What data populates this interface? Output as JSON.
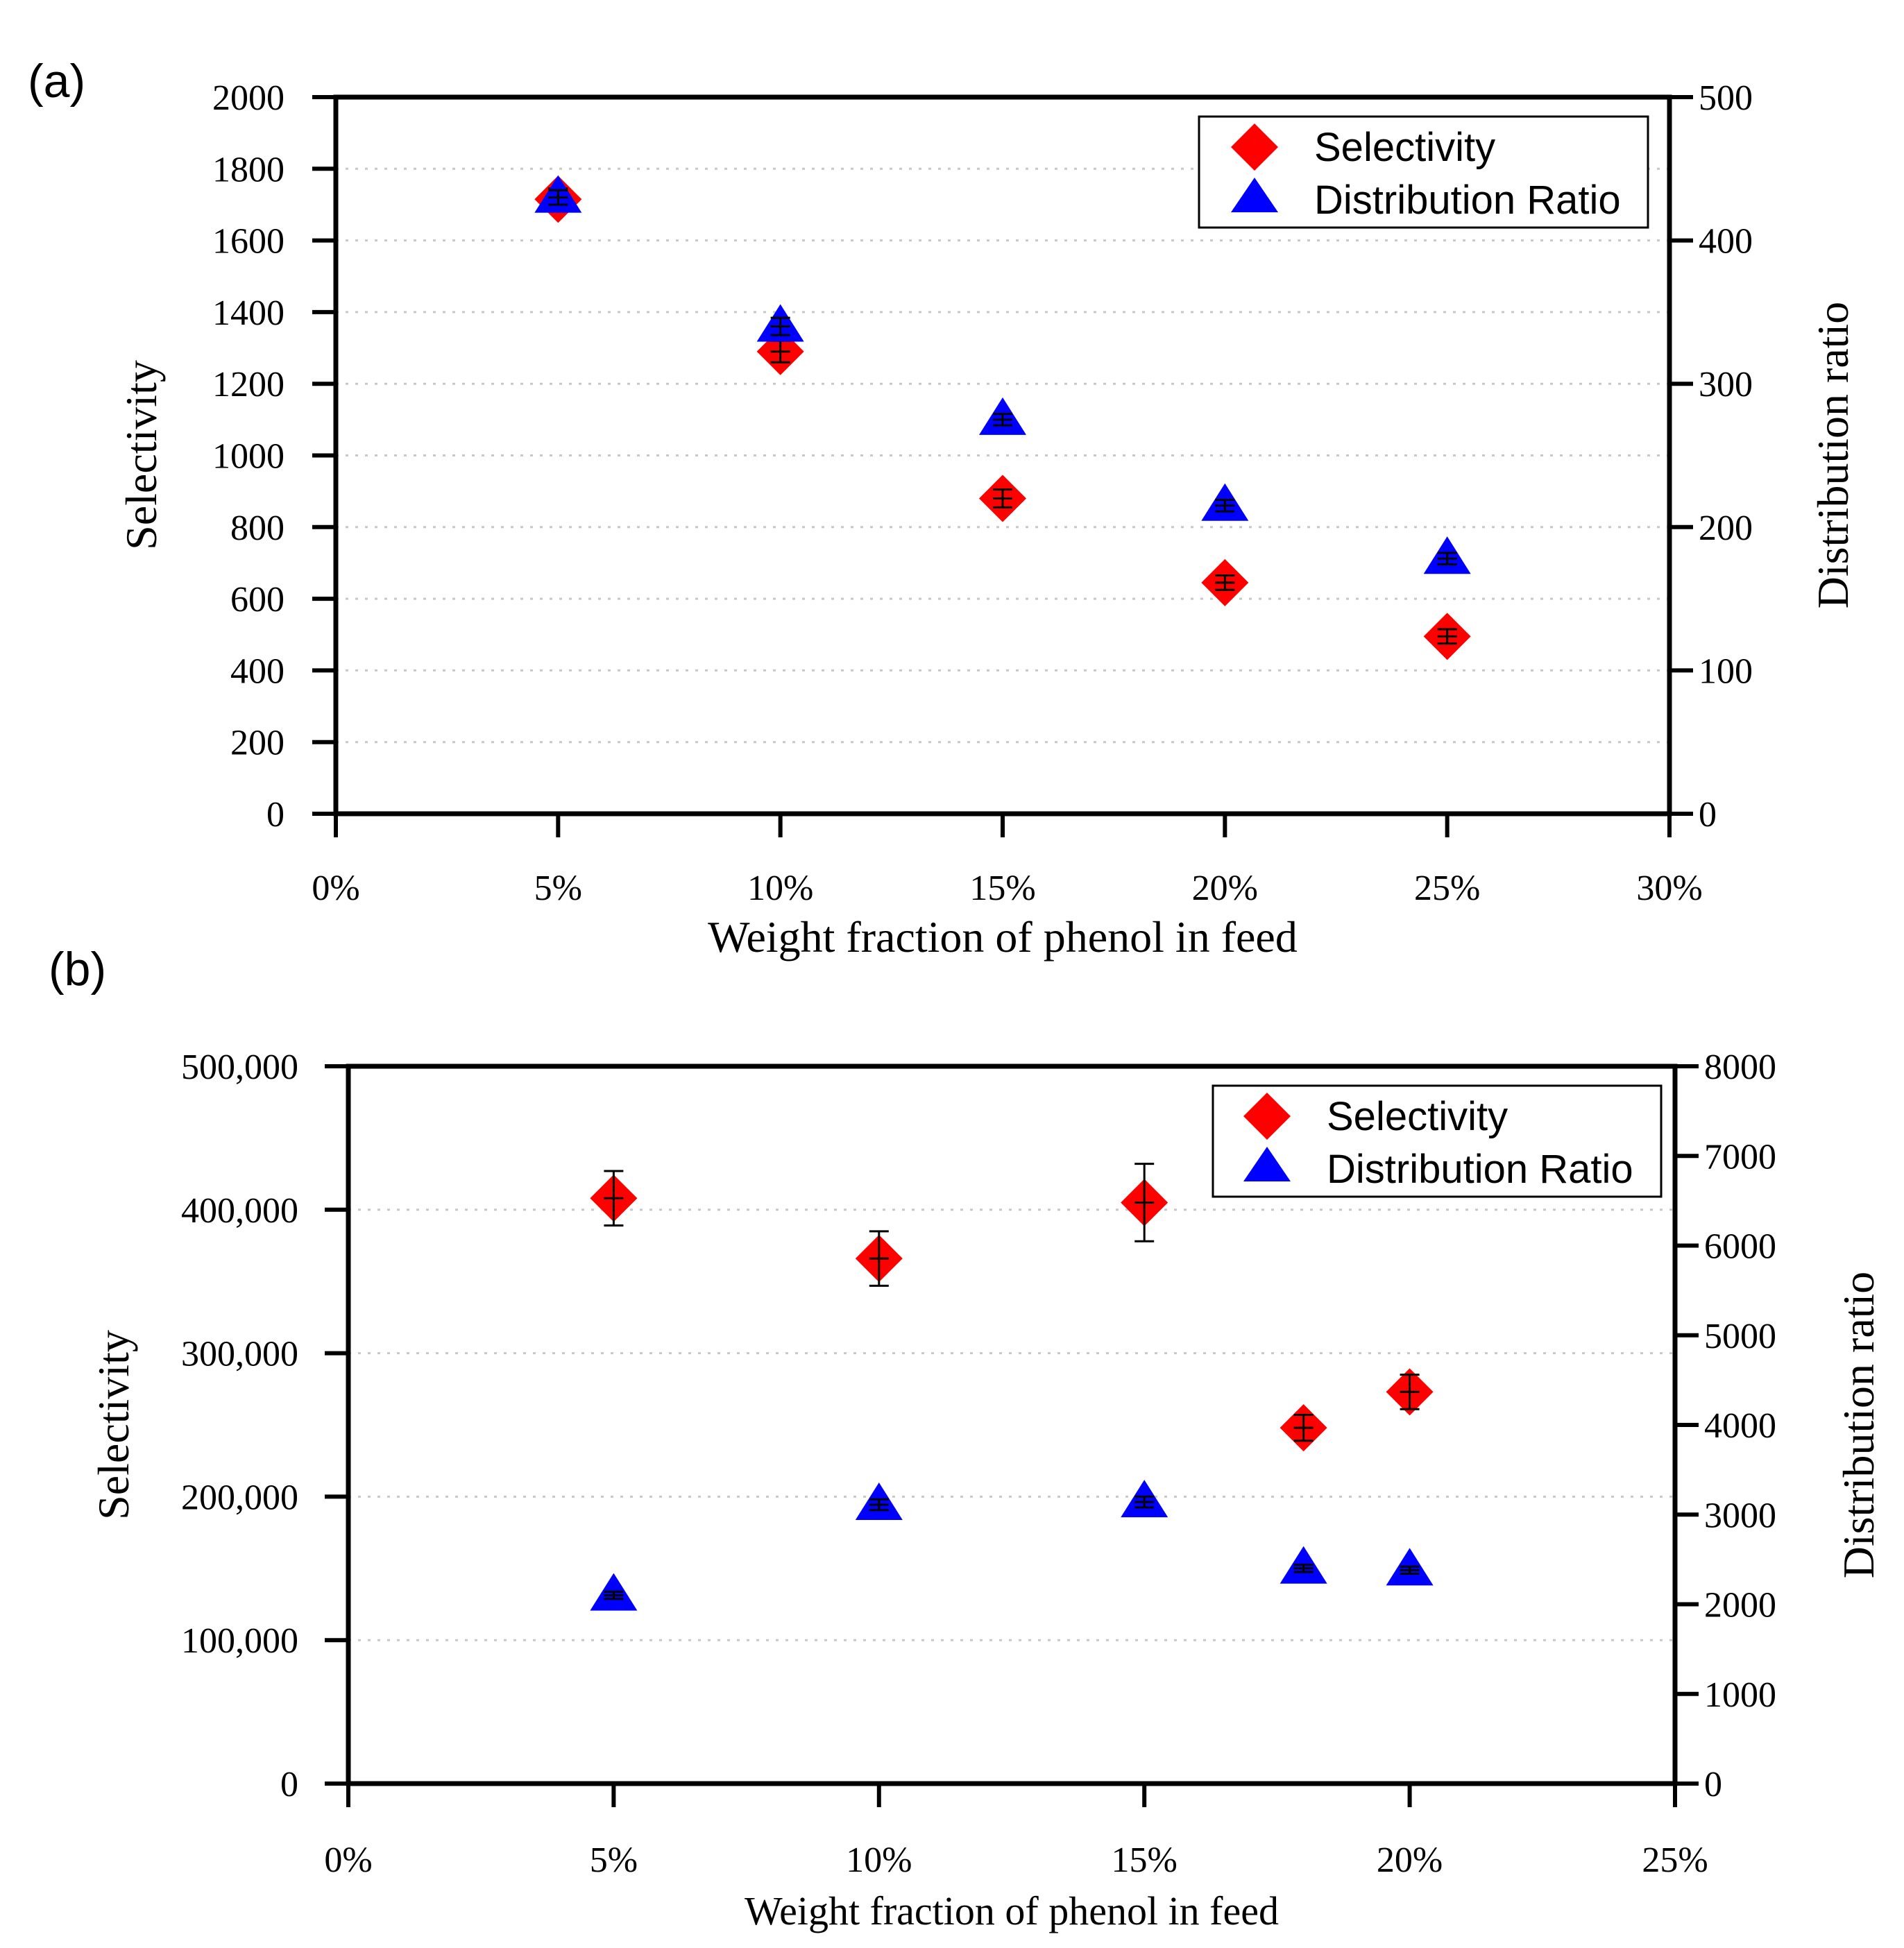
{
  "chart_data": [
    {
      "panel": "(a)",
      "type": "scatter",
      "xlabel": "Weight fraction of phenol in feed",
      "ylabel_left": "Selectivity",
      "ylabel_right": "Distribution ratio",
      "xlim": [
        0,
        30
      ],
      "ylim_left": [
        0,
        2000
      ],
      "ylim_right": [
        0,
        500
      ],
      "x_ticks": [
        "0%",
        "5%",
        "10%",
        "15%",
        "20%",
        "25%",
        "30%"
      ],
      "y_left_ticks": [
        "0",
        "200",
        "400",
        "600",
        "800",
        "1000",
        "1200",
        "1400",
        "1600",
        "1800",
        "2000"
      ],
      "y_right_ticks": [
        "0",
        "100",
        "200",
        "300",
        "400",
        "500"
      ],
      "grid": "horizontal dotted",
      "legend": {
        "position": "top-right",
        "entries": [
          "Selectivity",
          "Distribution Ratio"
        ]
      },
      "series": [
        {
          "name": "Selectivity",
          "axis": "left",
          "marker": "diamond",
          "color": "#ff0000",
          "x": [
            5,
            10,
            15,
            20,
            25
          ],
          "y": [
            1715,
            1290,
            880,
            645,
            495
          ],
          "err": [
            30,
            30,
            25,
            20,
            20
          ]
        },
        {
          "name": "Distribution Ratio",
          "axis": "right",
          "marker": "triangle",
          "color": "#0000ff",
          "x": [
            5,
            10,
            15,
            20,
            25
          ],
          "y": [
            430,
            340,
            275,
            215,
            178
          ],
          "err": [
            5,
            6,
            4,
            4,
            4
          ]
        }
      ]
    },
    {
      "panel": "(b)",
      "type": "scatter",
      "xlabel": "Weight fraction of phenol in feed",
      "ylabel_left": "Selectivity",
      "ylabel_right": "Distribution ratio",
      "xlim": [
        0,
        25
      ],
      "ylim_left": [
        0,
        500000
      ],
      "ylim_right": [
        0,
        8000
      ],
      "x_ticks": [
        "0%",
        "5%",
        "10%",
        "15%",
        "20%",
        "25%"
      ],
      "y_left_ticks": [
        "0",
        "100,000",
        "200,000",
        "300,000",
        "400,000",
        "500,000"
      ],
      "y_right_ticks": [
        "0",
        "1000",
        "2000",
        "3000",
        "4000",
        "5000",
        "6000",
        "7000",
        "8000"
      ],
      "grid": "horizontal dotted",
      "legend": {
        "position": "top-right",
        "entries": [
          "Selectivity",
          "Distribution Ratio"
        ]
      },
      "series": [
        {
          "name": "Selectivity",
          "axis": "left",
          "marker": "diamond",
          "color": "#ff0000",
          "x": [
            5,
            10,
            15,
            18,
            20
          ],
          "y": [
            408000,
            366000,
            405000,
            248000,
            273000
          ],
          "err": [
            19000,
            19000,
            27000,
            9000,
            12000
          ]
        },
        {
          "name": "Distribution Ratio",
          "axis": "right",
          "marker": "triangle",
          "color": "#0000ff",
          "x": [
            5,
            10,
            15,
            18,
            20
          ],
          "y": [
            2100,
            3110,
            3140,
            2400,
            2380
          ],
          "err": [
            40,
            60,
            60,
            40,
            40
          ]
        }
      ]
    }
  ]
}
